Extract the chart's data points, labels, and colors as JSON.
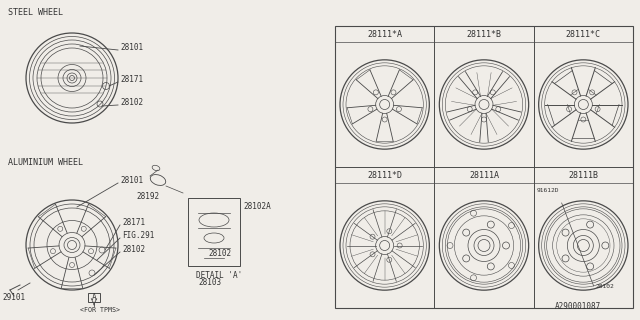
{
  "bg_color": "#f0ede8",
  "line_color": "#4a4a4a",
  "doc_id": "A290001087",
  "grid_labels_row1": [
    "28111*A",
    "28111*B",
    "28111*C"
  ],
  "grid_labels_row2": [
    "28111*D",
    "28111A",
    "28111B"
  ],
  "section_label_steel": "STEEL WHEEL",
  "section_label_alum": "ALUMINIUM WHEEL",
  "detail_label": "DETAIL 'A'",
  "tpms_label": "<FOR TPMS>",
  "label_a": "A",
  "note_91612d": "91612D",
  "note_28102": "28102"
}
